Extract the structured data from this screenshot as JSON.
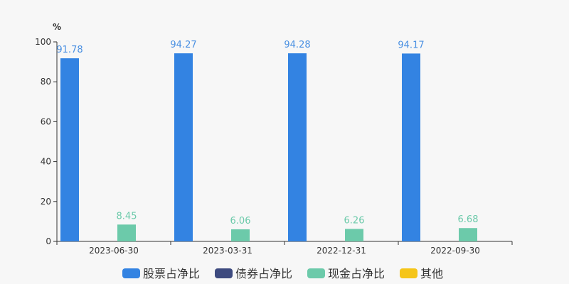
{
  "chart_data": {
    "type": "bar",
    "y_unit": "%",
    "ylim": [
      0,
      100
    ],
    "y_ticks": [
      0,
      20,
      40,
      60,
      80,
      100
    ],
    "categories": [
      "2023-06-30",
      "2023-03-31",
      "2022-12-31",
      "2022-09-30"
    ],
    "series": [
      {
        "name": "股票占净比",
        "color": "#3383e2",
        "label_color": "#4a90e2",
        "values": [
          91.78,
          94.27,
          94.28,
          94.17
        ]
      },
      {
        "name": "债券占净比",
        "color": "#3d4a7f",
        "label_color": "#3d4a7f",
        "values": [
          null,
          null,
          null,
          null
        ]
      },
      {
        "name": "现金占净比",
        "color": "#6ccaaa",
        "label_color": "#6ccaaa",
        "values": [
          8.45,
          6.06,
          6.26,
          6.68
        ]
      },
      {
        "name": "其他",
        "color": "#f5c518",
        "label_color": "#f5c518",
        "values": [
          null,
          null,
          null,
          null
        ]
      }
    ],
    "grid": false,
    "legend_position": "bottom"
  }
}
